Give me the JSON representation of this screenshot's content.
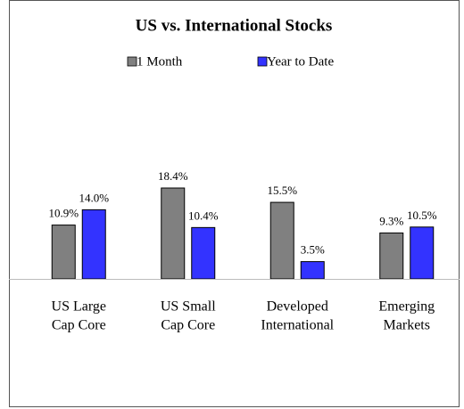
{
  "chart_data": {
    "type": "bar",
    "title": "US vs. International Stocks",
    "categories": [
      [
        "US Large",
        "Cap Core"
      ],
      [
        "US Small",
        "Cap Core"
      ],
      [
        "Developed",
        "International"
      ],
      [
        "Emerging",
        "Markets"
      ]
    ],
    "series": [
      {
        "name": "1 Month",
        "color": "#808080",
        "values": [
          10.9,
          18.4,
          15.5,
          9.3
        ],
        "value_labels": [
          "10.9%",
          "18.4%",
          "15.5%",
          "9.3%"
        ]
      },
      {
        "name": "Year to Date",
        "color": "#3333ff",
        "values": [
          14.0,
          10.4,
          3.5,
          10.5
        ],
        "value_labels": [
          "14.0%",
          "10.4%",
          "3.5%",
          "10.5%"
        ]
      }
    ],
    "legend": "top"
  }
}
